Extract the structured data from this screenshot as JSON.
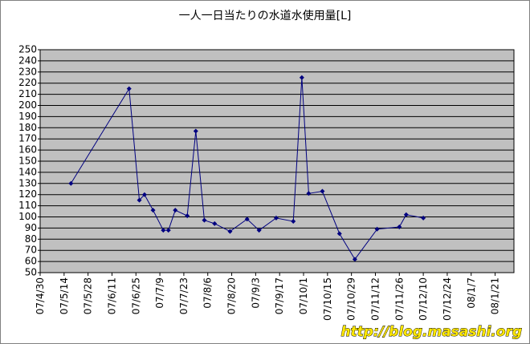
{
  "chart_data": {
    "type": "line",
    "title": "一人一日当たりの水道水使用量[L]",
    "x": [
      "07/5/18",
      "07/6/21",
      "07/6/27",
      "07/6/30",
      "07/7/5",
      "07/7/11",
      "07/7/14",
      "07/7/18",
      "07/7/25",
      "07/7/30",
      "07/8/4",
      "07/8/10",
      "07/8/19",
      "07/8/29",
      "07/9/5",
      "07/9/15",
      "07/9/25",
      "07/9/30",
      "07/10/4",
      "07/10/12",
      "07/10/22",
      "07/10/31",
      "07/11/13",
      "07/11/26",
      "07/11/30",
      "07/12/10"
    ],
    "series": [
      {
        "color": "#000080",
        "values": [
          130,
          215,
          115,
          120,
          106,
          88,
          88,
          106,
          101,
          177,
          97,
          94,
          87,
          98,
          88,
          99,
          96,
          225,
          121,
          123,
          85,
          62,
          89,
          91,
          102,
          99
        ]
      }
    ],
    "xlim": [
      "07/4/30",
      "08/2/1"
    ],
    "xticks": [
      "07/4/30",
      "07/5/14",
      "07/5/28",
      "07/6/11",
      "07/6/25",
      "07/7/9",
      "07/7/23",
      "07/8/6",
      "07/8/20",
      "07/9/3",
      "07/9/17",
      "07/10/1",
      "07/10/15",
      "07/10/29",
      "07/11/12",
      "07/11/26",
      "07/12/10",
      "07/12/24",
      "08/1/7",
      "08/1/21"
    ],
    "ylim": [
      50,
      250
    ],
    "yticks": [
      50,
      60,
      70,
      80,
      90,
      100,
      110,
      120,
      130,
      140,
      150,
      160,
      170,
      180,
      190,
      200,
      210,
      220,
      230,
      240,
      250
    ],
    "grid": true,
    "watermark": "http://blog.masashi.org"
  }
}
